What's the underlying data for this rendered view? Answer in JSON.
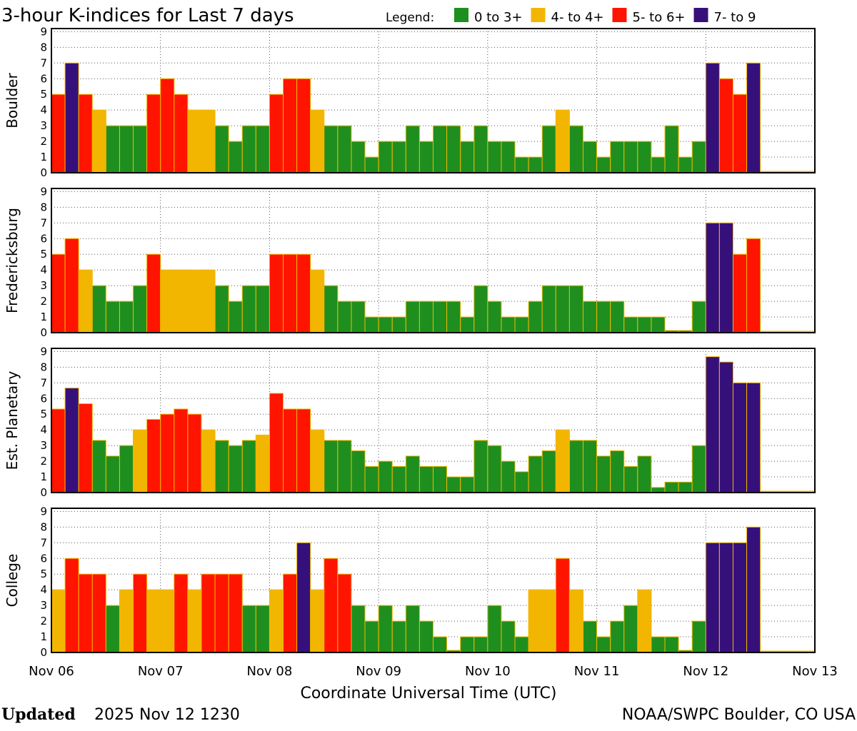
{
  "chart_data": [
    {
      "type": "bar",
      "title": "3-hour K-indices for Last 7 days",
      "legend_title": "Legend:",
      "legend": [
        {
          "name": "0 to 3+",
          "color": "#1e8f1e"
        },
        {
          "name": "4- to 4+",
          "color": "#f2b600"
        },
        {
          "name": "5- to 6+",
          "color": "#ff1400"
        },
        {
          "name": "7- to 9",
          "color": "#36107a"
        }
      ],
      "x_label": "Coordinate Universal Time (UTC)",
      "x_labels": [
        "Nov 06",
        "Nov 07",
        "Nov 08",
        "Nov 09",
        "Nov 10",
        "Nov 11",
        "Nov 12",
        "Nov 13"
      ],
      "ylim": [
        0,
        9.2
      ],
      "yticks": [
        0,
        1,
        2,
        3,
        4,
        5,
        6,
        7,
        8,
        9
      ],
      "grid": true,
      "panels": [
        {
          "ylabel": "Boulder",
          "values": [
            5,
            7,
            5,
            4,
            3,
            3,
            3,
            5,
            6,
            5,
            4,
            4,
            3,
            2,
            3,
            3,
            5,
            6,
            6,
            4,
            3,
            3,
            2,
            1,
            2,
            2,
            3,
            2,
            3,
            3,
            2,
            3,
            2,
            2,
            1,
            1,
            3,
            4,
            3,
            2,
            1,
            2,
            2,
            2,
            1,
            3,
            1,
            2,
            7,
            6,
            5,
            7,
            null,
            null,
            null,
            null
          ],
          "colors": [
            "#ff1400",
            "#36107a",
            "#ff1400",
            "#f2b600",
            "#1e8f1e",
            "#1e8f1e",
            "#1e8f1e",
            "#ff1400",
            "#ff1400",
            "#ff1400",
            "#f2b600",
            "#f2b600",
            "#1e8f1e",
            "#1e8f1e",
            "#1e8f1e",
            "#1e8f1e",
            "#ff1400",
            "#ff1400",
            "#ff1400",
            "#f2b600",
            "#1e8f1e",
            "#1e8f1e",
            "#1e8f1e",
            "#1e8f1e",
            "#1e8f1e",
            "#1e8f1e",
            "#1e8f1e",
            "#1e8f1e",
            "#1e8f1e",
            "#1e8f1e",
            "#1e8f1e",
            "#1e8f1e",
            "#1e8f1e",
            "#1e8f1e",
            "#1e8f1e",
            "#1e8f1e",
            "#1e8f1e",
            "#f2b600",
            "#1e8f1e",
            "#1e8f1e",
            "#1e8f1e",
            "#1e8f1e",
            "#1e8f1e",
            "#1e8f1e",
            "#1e8f1e",
            "#1e8f1e",
            "#1e8f1e",
            "#1e8f1e",
            "#36107a",
            "#ff1400",
            "#ff1400",
            "#36107a",
            null,
            null,
            null,
            null
          ]
        },
        {
          "ylabel": "Fredericksburg",
          "values": [
            5,
            6,
            4,
            3,
            2,
            2,
            3,
            5,
            4,
            4,
            4,
            4,
            3,
            2,
            3,
            3,
            5,
            5,
            5,
            4,
            3,
            2,
            2,
            1,
            1,
            1,
            2,
            2,
            2,
            2,
            1,
            3,
            2,
            1,
            1,
            2,
            3,
            3,
            3,
            2,
            2,
            2,
            1,
            1,
            1,
            0,
            0,
            2,
            7,
            7,
            5,
            6,
            null,
            null,
            null,
            null
          ],
          "colors": [
            "#ff1400",
            "#ff1400",
            "#f2b600",
            "#1e8f1e",
            "#1e8f1e",
            "#1e8f1e",
            "#1e8f1e",
            "#ff1400",
            "#f2b600",
            "#f2b600",
            "#f2b600",
            "#f2b600",
            "#1e8f1e",
            "#1e8f1e",
            "#1e8f1e",
            "#1e8f1e",
            "#ff1400",
            "#ff1400",
            "#ff1400",
            "#f2b600",
            "#1e8f1e",
            "#1e8f1e",
            "#1e8f1e",
            "#1e8f1e",
            "#1e8f1e",
            "#1e8f1e",
            "#1e8f1e",
            "#1e8f1e",
            "#1e8f1e",
            "#1e8f1e",
            "#1e8f1e",
            "#1e8f1e",
            "#1e8f1e",
            "#1e8f1e",
            "#1e8f1e",
            "#1e8f1e",
            "#1e8f1e",
            "#1e8f1e",
            "#1e8f1e",
            "#1e8f1e",
            "#1e8f1e",
            "#1e8f1e",
            "#1e8f1e",
            "#1e8f1e",
            "#1e8f1e",
            "#1e8f1e",
            "#1e8f1e",
            "#1e8f1e",
            "#36107a",
            "#36107a",
            "#ff1400",
            "#ff1400",
            null,
            null,
            null,
            null
          ]
        },
        {
          "ylabel": "Est. Planetary",
          "values": [
            5.33,
            6.67,
            5.67,
            3.33,
            2.33,
            3,
            4,
            4.67,
            5,
            5.33,
            5,
            4,
            3.33,
            3,
            3.33,
            3.67,
            6.33,
            5.33,
            5.33,
            4,
            3.33,
            3.33,
            2.67,
            1.67,
            2,
            1.67,
            2.33,
            1.67,
            1.67,
            1,
            1,
            3.33,
            3,
            2,
            1.33,
            2.33,
            2.67,
            4,
            3.33,
            3.33,
            2.33,
            2.67,
            1.67,
            2.33,
            0.33,
            0.67,
            0.67,
            3,
            8.67,
            8.33,
            7,
            7,
            null,
            null,
            null,
            null
          ],
          "colors": [
            "#ff1400",
            "#36107a",
            "#ff1400",
            "#1e8f1e",
            "#1e8f1e",
            "#1e8f1e",
            "#f2b600",
            "#ff1400",
            "#ff1400",
            "#ff1400",
            "#ff1400",
            "#f2b600",
            "#1e8f1e",
            "#1e8f1e",
            "#1e8f1e",
            "#f2b600",
            "#ff1400",
            "#ff1400",
            "#ff1400",
            "#f2b600",
            "#1e8f1e",
            "#1e8f1e",
            "#1e8f1e",
            "#1e8f1e",
            "#1e8f1e",
            "#1e8f1e",
            "#1e8f1e",
            "#1e8f1e",
            "#1e8f1e",
            "#1e8f1e",
            "#1e8f1e",
            "#1e8f1e",
            "#1e8f1e",
            "#1e8f1e",
            "#1e8f1e",
            "#1e8f1e",
            "#1e8f1e",
            "#f2b600",
            "#1e8f1e",
            "#1e8f1e",
            "#1e8f1e",
            "#1e8f1e",
            "#1e8f1e",
            "#1e8f1e",
            "#1e8f1e",
            "#1e8f1e",
            "#1e8f1e",
            "#1e8f1e",
            "#36107a",
            "#36107a",
            "#36107a",
            "#36107a",
            null,
            null,
            null,
            null
          ]
        },
        {
          "ylabel": "College",
          "values": [
            4,
            6,
            5,
            5,
            3,
            4,
            5,
            4,
            4,
            5,
            4,
            5,
            5,
            5,
            3,
            3,
            4,
            5,
            7,
            4,
            6,
            5,
            3,
            2,
            3,
            2,
            3,
            2,
            1,
            0,
            1,
            1,
            3,
            2,
            1,
            4,
            4,
            6,
            4,
            2,
            1,
            2,
            3,
            4,
            1,
            1,
            0,
            2,
            7,
            7,
            7,
            8,
            null,
            null,
            null,
            null
          ],
          "colors": [
            "#f2b600",
            "#ff1400",
            "#ff1400",
            "#ff1400",
            "#1e8f1e",
            "#f2b600",
            "#ff1400",
            "#f2b600",
            "#f2b600",
            "#ff1400",
            "#f2b600",
            "#ff1400",
            "#ff1400",
            "#ff1400",
            "#1e8f1e",
            "#1e8f1e",
            "#f2b600",
            "#ff1400",
            "#36107a",
            "#f2b600",
            "#ff1400",
            "#ff1400",
            "#1e8f1e",
            "#1e8f1e",
            "#1e8f1e",
            "#1e8f1e",
            "#1e8f1e",
            "#1e8f1e",
            "#1e8f1e",
            "#1e8f1e",
            "#1e8f1e",
            "#1e8f1e",
            "#1e8f1e",
            "#1e8f1e",
            "#1e8f1e",
            "#f2b600",
            "#f2b600",
            "#ff1400",
            "#f2b600",
            "#1e8f1e",
            "#1e8f1e",
            "#1e8f1e",
            "#1e8f1e",
            "#f2b600",
            "#1e8f1e",
            "#1e8f1e",
            "#1e8f1e",
            "#1e8f1e",
            "#36107a",
            "#36107a",
            "#36107a",
            "#36107a",
            null,
            null,
            null,
            null
          ]
        }
      ],
      "updated_label": "Updated",
      "updated": "2025 Nov 12 1230",
      "source": "NOAA/SWPC Boulder, CO USA"
    }
  ]
}
